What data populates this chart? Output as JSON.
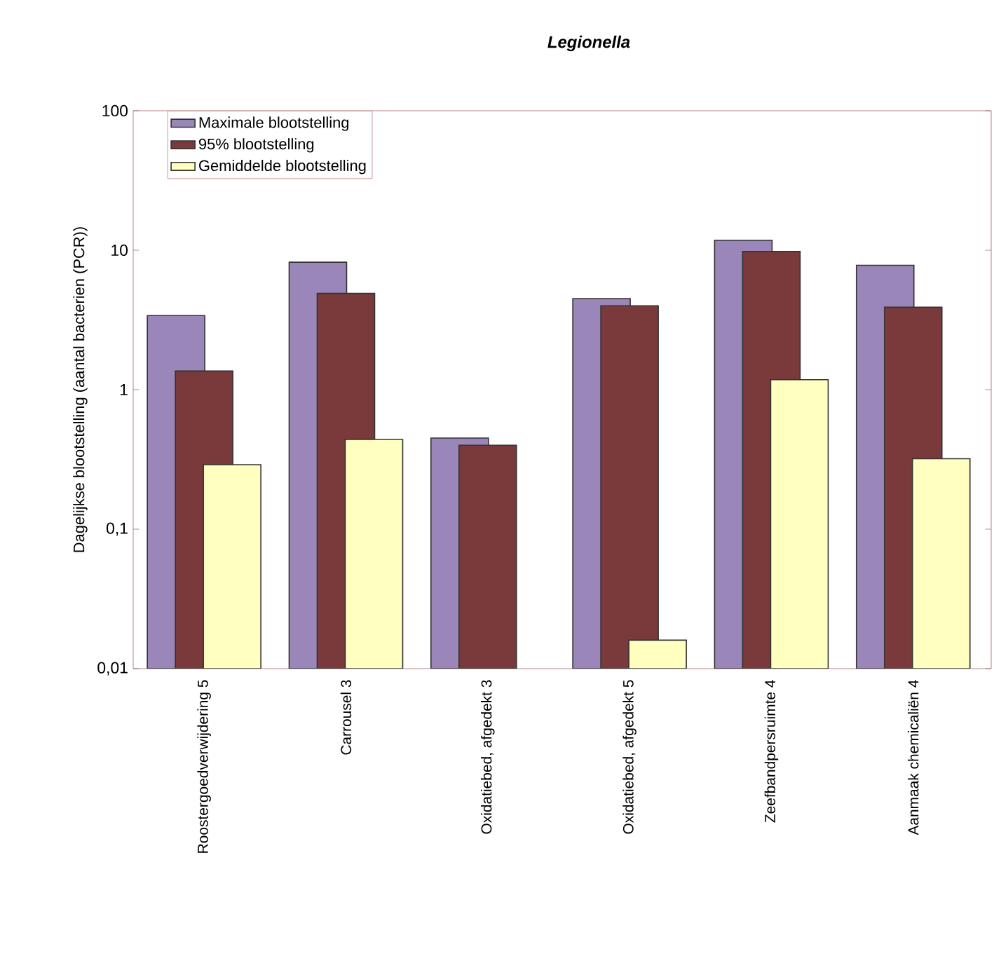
{
  "chart_data": {
    "type": "bar",
    "title": "Legionella",
    "ylabel": "Dagelijkse blootstelling (aantal bacterien (PCR))",
    "categories": [
      "Roostergoedverwijdering 5",
      "Carrousel 3",
      "Oxidatiebed, afgedekt 3",
      "Oxidatiebed, afgedekt 5",
      "Zeefbandpersruimte 4",
      "Aanmaak chemicaliën 4"
    ],
    "series": [
      {
        "name": "Maximale blootstelling",
        "color": "#9a86b8",
        "values": [
          3.4,
          8.2,
          0.45,
          4.5,
          11.8,
          7.8
        ]
      },
      {
        "name": "95% blootstelling",
        "color": "#7a3a3c",
        "values": [
          1.36,
          4.9,
          0.4,
          4.0,
          9.8,
          3.9
        ]
      },
      {
        "name": "Gemiddelde blootstelling",
        "color": "#ffffc0",
        "values": [
          0.29,
          0.44,
          null,
          0.016,
          1.18,
          0.32
        ]
      }
    ],
    "log": "y",
    "ylim": [
      0.01,
      100
    ],
    "yticks": [
      {
        "value": 0.01,
        "label": "0,01"
      },
      {
        "value": 0.1,
        "label": "0,1"
      },
      {
        "value": 1,
        "label": "1"
      },
      {
        "value": 10,
        "label": "10"
      },
      {
        "value": 100,
        "label": "100"
      }
    ],
    "legend": "top left"
  }
}
